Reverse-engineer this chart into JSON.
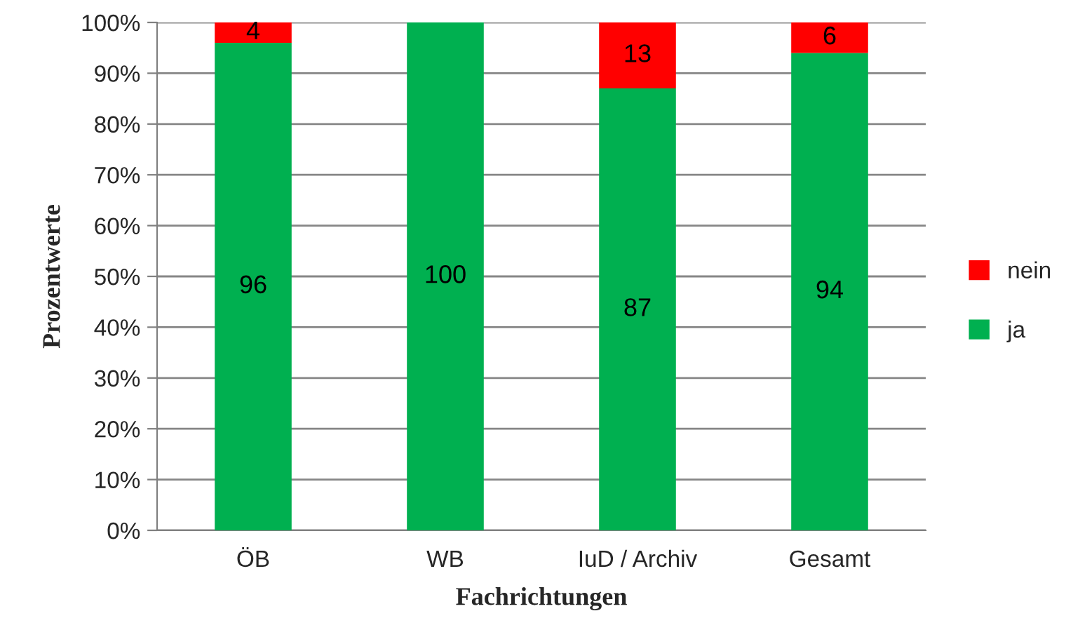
{
  "chart_data": {
    "type": "bar",
    "stacked": true,
    "xlabel": "Fachrichtungen",
    "ylabel": "Prozentwerte",
    "categories": [
      "ÖB",
      "WB",
      "IuD / Archiv",
      "Gesamt"
    ],
    "series": [
      {
        "name": "ja",
        "color": "#00b050",
        "values": [
          96,
          100,
          87,
          94
        ],
        "value_labels": [
          "96",
          "100",
          "87",
          "94"
        ]
      },
      {
        "name": "nein",
        "color": "#ff0000",
        "values": [
          4,
          0,
          13,
          6
        ],
        "value_labels": [
          "4",
          null,
          "13",
          "6"
        ]
      }
    ],
    "ylim": [
      0,
      100
    ],
    "yticks": [
      {
        "value": 0,
        "label": "0%"
      },
      {
        "value": 10,
        "label": "10%"
      },
      {
        "value": 20,
        "label": "20%"
      },
      {
        "value": 30,
        "label": "30%"
      },
      {
        "value": 40,
        "label": "40%"
      },
      {
        "value": 50,
        "label": "50%"
      },
      {
        "value": 60,
        "label": "60%"
      },
      {
        "value": 70,
        "label": "70%"
      },
      {
        "value": 80,
        "label": "80%"
      },
      {
        "value": 90,
        "label": "90%"
      },
      {
        "value": 100,
        "label": "100%"
      }
    ],
    "grid": "y",
    "legend": "right"
  }
}
